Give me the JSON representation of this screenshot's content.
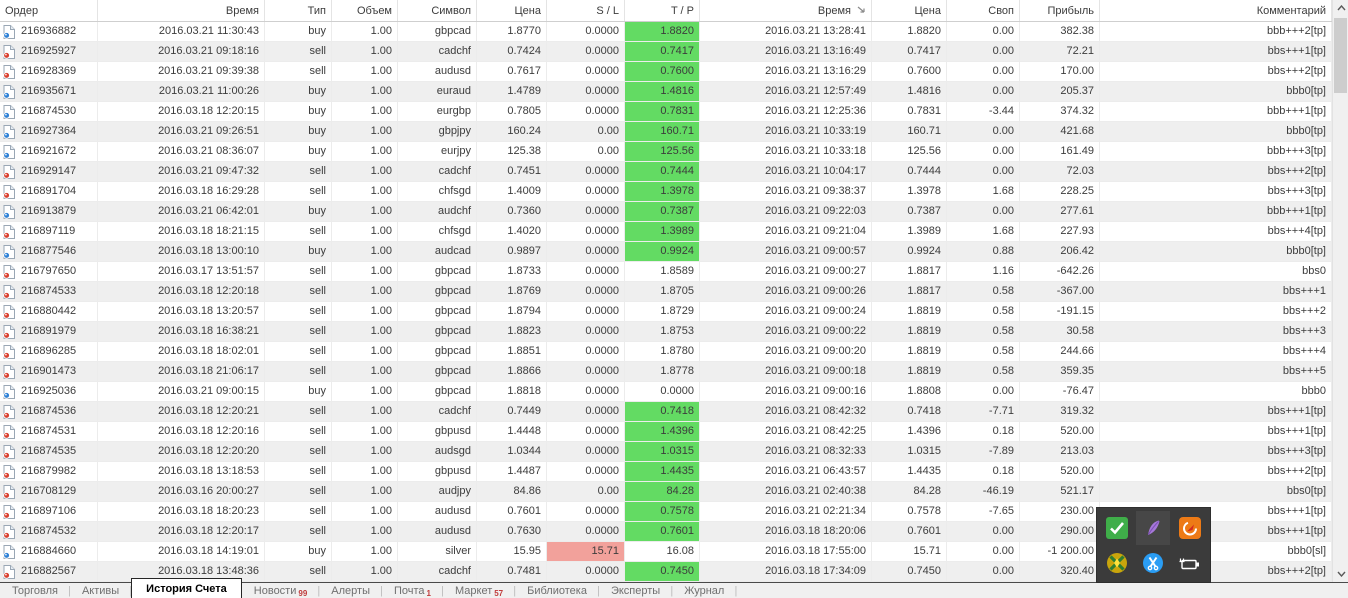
{
  "colors": {
    "tp_green": "#63db63",
    "sl_red": "#f2a19b",
    "badge_red": "#c03b3b",
    "buy_icon": "#2f81d6",
    "sell_icon": "#d8402f"
  },
  "table": {
    "columns": [
      {
        "label": "Ордер"
      },
      {
        "label": "Время"
      },
      {
        "label": "Тип"
      },
      {
        "label": "Объем"
      },
      {
        "label": "Символ"
      },
      {
        "label": "Цена"
      },
      {
        "label": "S / L"
      },
      {
        "label": "T / P"
      },
      {
        "label": "Время",
        "sorted": "desc"
      },
      {
        "label": "Цена"
      },
      {
        "label": "Своп"
      },
      {
        "label": "Прибыль"
      },
      {
        "label": "Комментарий"
      }
    ],
    "rows": [
      {
        "order": "216936882",
        "open_time": "2016.03.21 11:30:43",
        "type": "buy",
        "volume": "1.00",
        "symbol": "gbpcad",
        "open_price": "1.8770",
        "sl": "0.0000",
        "tp": "1.8820",
        "tp_green": true,
        "close_time": "2016.03.21 13:28:41",
        "close_price": "1.8820",
        "swap": "0.00",
        "profit": "382.38",
        "comment": "bbb+++2[tp]"
      },
      {
        "order": "216925927",
        "open_time": "2016.03.21 09:18:16",
        "type": "sell",
        "volume": "1.00",
        "symbol": "cadchf",
        "open_price": "0.7424",
        "sl": "0.0000",
        "tp": "0.7417",
        "tp_green": true,
        "close_time": "2016.03.21 13:16:49",
        "close_price": "0.7417",
        "swap": "0.00",
        "profit": "72.21",
        "comment": "bbs+++1[tp]"
      },
      {
        "order": "216928369",
        "open_time": "2016.03.21 09:39:38",
        "type": "sell",
        "volume": "1.00",
        "symbol": "audusd",
        "open_price": "0.7617",
        "sl": "0.0000",
        "tp": "0.7600",
        "tp_green": true,
        "close_time": "2016.03.21 13:16:29",
        "close_price": "0.7600",
        "swap": "0.00",
        "profit": "170.00",
        "comment": "bbs+++2[tp]"
      },
      {
        "order": "216935671",
        "open_time": "2016.03.21 11:00:26",
        "type": "buy",
        "volume": "1.00",
        "symbol": "euraud",
        "open_price": "1.4789",
        "sl": "0.0000",
        "tp": "1.4816",
        "tp_green": true,
        "close_time": "2016.03.21 12:57:49",
        "close_price": "1.4816",
        "swap": "0.00",
        "profit": "205.37",
        "comment": "bbb0[tp]"
      },
      {
        "order": "216874530",
        "open_time": "2016.03.18 12:20:15",
        "type": "buy",
        "volume": "1.00",
        "symbol": "eurgbp",
        "open_price": "0.7805",
        "sl": "0.0000",
        "tp": "0.7831",
        "tp_green": true,
        "close_time": "2016.03.21 12:25:36",
        "close_price": "0.7831",
        "swap": "-3.44",
        "profit": "374.32",
        "comment": "bbb+++1[tp]"
      },
      {
        "order": "216927364",
        "open_time": "2016.03.21 09:26:51",
        "type": "buy",
        "volume": "1.00",
        "symbol": "gbpjpy",
        "open_price": "160.24",
        "sl": "0.00",
        "tp": "160.71",
        "tp_green": true,
        "close_time": "2016.03.21 10:33:19",
        "close_price": "160.71",
        "swap": "0.00",
        "profit": "421.68",
        "comment": "bbb0[tp]"
      },
      {
        "order": "216921672",
        "open_time": "2016.03.21 08:36:07",
        "type": "buy",
        "volume": "1.00",
        "symbol": "eurjpy",
        "open_price": "125.38",
        "sl": "0.00",
        "tp": "125.56",
        "tp_green": true,
        "close_time": "2016.03.21 10:33:18",
        "close_price": "125.56",
        "swap": "0.00",
        "profit": "161.49",
        "comment": "bbb+++3[tp]"
      },
      {
        "order": "216929147",
        "open_time": "2016.03.21 09:47:32",
        "type": "sell",
        "volume": "1.00",
        "symbol": "cadchf",
        "open_price": "0.7451",
        "sl": "0.0000",
        "tp": "0.7444",
        "tp_green": true,
        "close_time": "2016.03.21 10:04:17",
        "close_price": "0.7444",
        "swap": "0.00",
        "profit": "72.03",
        "comment": "bbs+++2[tp]"
      },
      {
        "order": "216891704",
        "open_time": "2016.03.18 16:29:28",
        "type": "sell",
        "volume": "1.00",
        "symbol": "chfsgd",
        "open_price": "1.4009",
        "sl": "0.0000",
        "tp": "1.3978",
        "tp_green": true,
        "close_time": "2016.03.21 09:38:37",
        "close_price": "1.3978",
        "swap": "1.68",
        "profit": "228.25",
        "comment": "bbs+++3[tp]"
      },
      {
        "order": "216913879",
        "open_time": "2016.03.21 06:42:01",
        "type": "buy",
        "volume": "1.00",
        "symbol": "audchf",
        "open_price": "0.7360",
        "sl": "0.0000",
        "tp": "0.7387",
        "tp_green": true,
        "close_time": "2016.03.21 09:22:03",
        "close_price": "0.7387",
        "swap": "0.00",
        "profit": "277.61",
        "comment": "bbb+++1[tp]"
      },
      {
        "order": "216897119",
        "open_time": "2016.03.18 18:21:15",
        "type": "sell",
        "volume": "1.00",
        "symbol": "chfsgd",
        "open_price": "1.4020",
        "sl": "0.0000",
        "tp": "1.3989",
        "tp_green": true,
        "close_time": "2016.03.21 09:21:04",
        "close_price": "1.3989",
        "swap": "1.68",
        "profit": "227.93",
        "comment": "bbs+++4[tp]"
      },
      {
        "order": "216877546",
        "open_time": "2016.03.18 13:00:10",
        "type": "buy",
        "volume": "1.00",
        "symbol": "audcad",
        "open_price": "0.9897",
        "sl": "0.0000",
        "tp": "0.9924",
        "tp_green": true,
        "close_time": "2016.03.21 09:00:57",
        "close_price": "0.9924",
        "swap": "0.88",
        "profit": "206.42",
        "comment": "bbb0[tp]"
      },
      {
        "order": "216797650",
        "open_time": "2016.03.17 13:51:57",
        "type": "sell",
        "volume": "1.00",
        "symbol": "gbpcad",
        "open_price": "1.8733",
        "sl": "0.0000",
        "tp": "1.8589",
        "tp_green": false,
        "close_time": "2016.03.21 09:00:27",
        "close_price": "1.8817",
        "swap": "1.16",
        "profit": "-642.26",
        "comment": "bbs0"
      },
      {
        "order": "216874533",
        "open_time": "2016.03.18 12:20:18",
        "type": "sell",
        "volume": "1.00",
        "symbol": "gbpcad",
        "open_price": "1.8769",
        "sl": "0.0000",
        "tp": "1.8705",
        "tp_green": false,
        "close_time": "2016.03.21 09:00:26",
        "close_price": "1.8817",
        "swap": "0.58",
        "profit": "-367.00",
        "comment": "bbs+++1"
      },
      {
        "order": "216880442",
        "open_time": "2016.03.18 13:20:57",
        "type": "sell",
        "volume": "1.00",
        "symbol": "gbpcad",
        "open_price": "1.8794",
        "sl": "0.0000",
        "tp": "1.8729",
        "tp_green": false,
        "close_time": "2016.03.21 09:00:24",
        "close_price": "1.8819",
        "swap": "0.58",
        "profit": "-191.15",
        "comment": "bbs+++2"
      },
      {
        "order": "216891979",
        "open_time": "2016.03.18 16:38:21",
        "type": "sell",
        "volume": "1.00",
        "symbol": "gbpcad",
        "open_price": "1.8823",
        "sl": "0.0000",
        "tp": "1.8753",
        "tp_green": false,
        "close_time": "2016.03.21 09:00:22",
        "close_price": "1.8819",
        "swap": "0.58",
        "profit": "30.58",
        "comment": "bbs+++3"
      },
      {
        "order": "216896285",
        "open_time": "2016.03.18 18:02:01",
        "type": "sell",
        "volume": "1.00",
        "symbol": "gbpcad",
        "open_price": "1.8851",
        "sl": "0.0000",
        "tp": "1.8780",
        "tp_green": false,
        "close_time": "2016.03.21 09:00:20",
        "close_price": "1.8819",
        "swap": "0.58",
        "profit": "244.66",
        "comment": "bbs+++4"
      },
      {
        "order": "216901473",
        "open_time": "2016.03.18 21:06:17",
        "type": "sell",
        "volume": "1.00",
        "symbol": "gbpcad",
        "open_price": "1.8866",
        "sl": "0.0000",
        "tp": "1.8778",
        "tp_green": false,
        "close_time": "2016.03.21 09:00:18",
        "close_price": "1.8819",
        "swap": "0.58",
        "profit": "359.35",
        "comment": "bbs+++5"
      },
      {
        "order": "216925036",
        "open_time": "2016.03.21 09:00:15",
        "type": "buy",
        "volume": "1.00",
        "symbol": "gbpcad",
        "open_price": "1.8818",
        "sl": "0.0000",
        "tp": "0.0000",
        "tp_green": false,
        "close_time": "2016.03.21 09:00:16",
        "close_price": "1.8808",
        "swap": "0.00",
        "profit": "-76.47",
        "comment": "bbb0"
      },
      {
        "order": "216874536",
        "open_time": "2016.03.18 12:20:21",
        "type": "sell",
        "volume": "1.00",
        "symbol": "cadchf",
        "open_price": "0.7449",
        "sl": "0.0000",
        "tp": "0.7418",
        "tp_green": true,
        "close_time": "2016.03.21 08:42:32",
        "close_price": "0.7418",
        "swap": "-7.71",
        "profit": "319.32",
        "comment": "bbs+++1[tp]"
      },
      {
        "order": "216874531",
        "open_time": "2016.03.18 12:20:16",
        "type": "sell",
        "volume": "1.00",
        "symbol": "gbpusd",
        "open_price": "1.4448",
        "sl": "0.0000",
        "tp": "1.4396",
        "tp_green": true,
        "close_time": "2016.03.21 08:42:25",
        "close_price": "1.4396",
        "swap": "0.18",
        "profit": "520.00",
        "comment": "bbs+++1[tp]"
      },
      {
        "order": "216874535",
        "open_time": "2016.03.18 12:20:20",
        "type": "sell",
        "volume": "1.00",
        "symbol": "audsgd",
        "open_price": "1.0344",
        "sl": "0.0000",
        "tp": "1.0315",
        "tp_green": true,
        "close_time": "2016.03.21 08:32:33",
        "close_price": "1.0315",
        "swap": "-7.89",
        "profit": "213.03",
        "comment": "bbs+++3[tp]"
      },
      {
        "order": "216879982",
        "open_time": "2016.03.18 13:18:53",
        "type": "sell",
        "volume": "1.00",
        "symbol": "gbpusd",
        "open_price": "1.4487",
        "sl": "0.0000",
        "tp": "1.4435",
        "tp_green": true,
        "close_time": "2016.03.21 06:43:57",
        "close_price": "1.4435",
        "swap": "0.18",
        "profit": "520.00",
        "comment": "bbs+++2[tp]"
      },
      {
        "order": "216708129",
        "open_time": "2016.03.16 20:00:27",
        "type": "sell",
        "volume": "1.00",
        "symbol": "audjpy",
        "open_price": "84.86",
        "sl": "0.00",
        "tp": "84.28",
        "tp_green": true,
        "close_time": "2016.03.21 02:40:38",
        "close_price": "84.28",
        "swap": "-46.19",
        "profit": "521.17",
        "comment": "bbs0[tp]"
      },
      {
        "order": "216897106",
        "open_time": "2016.03.18 18:20:23",
        "type": "sell",
        "volume": "1.00",
        "symbol": "audusd",
        "open_price": "0.7601",
        "sl": "0.0000",
        "tp": "0.7578",
        "tp_green": true,
        "close_time": "2016.03.21 02:21:34",
        "close_price": "0.7578",
        "swap": "-7.65",
        "profit": "230.00",
        "comment": "bbs+++1[tp]"
      },
      {
        "order": "216874532",
        "open_time": "2016.03.18 12:20:17",
        "type": "sell",
        "volume": "1.00",
        "symbol": "audusd",
        "open_price": "0.7630",
        "sl": "0.0000",
        "tp": "0.7601",
        "tp_green": true,
        "close_time": "2016.03.18 18:20:06",
        "close_price": "0.7601",
        "swap": "0.00",
        "profit": "290.00",
        "comment": "bbs+++1[tp]"
      },
      {
        "order": "216884660",
        "open_time": "2016.03.18 14:19:01",
        "type": "buy",
        "volume": "1.00",
        "symbol": "silver",
        "open_price": "15.95",
        "sl": "15.71",
        "sl_red": true,
        "tp": "16.08",
        "tp_green": false,
        "close_time": "2016.03.18 17:55:00",
        "close_price": "15.71",
        "swap": "0.00",
        "profit": "-1 200.00",
        "comment": "bbb0[sl]"
      },
      {
        "order": "216882567",
        "open_time": "2016.03.18 13:48:36",
        "type": "sell",
        "volume": "1.00",
        "symbol": "cadchf",
        "open_price": "0.7481",
        "sl": "0.0000",
        "tp": "0.7450",
        "tp_green": true,
        "close_time": "2016.03.18 17:34:09",
        "close_price": "0.7450",
        "swap": "0.00",
        "profit": "320.40",
        "comment": "bbs+++2[tp]"
      }
    ]
  },
  "tabs": {
    "items": [
      {
        "label": "Торговля"
      },
      {
        "label": "Активы"
      },
      {
        "label": "История Счета",
        "active": true
      },
      {
        "label": "Новости",
        "badge": "99"
      },
      {
        "label": "Алерты"
      },
      {
        "label": "Почта",
        "badge": "1"
      },
      {
        "label": "Маркет",
        "badge": "57"
      },
      {
        "label": "Библиотека"
      },
      {
        "label": "Эксперты"
      },
      {
        "label": "Журнал"
      }
    ]
  },
  "tray": {
    "icons": [
      {
        "name": "check-icon"
      },
      {
        "name": "feather-icon",
        "hover": true
      },
      {
        "name": "gauge-icon"
      },
      {
        "name": "pinwheel-icon"
      },
      {
        "name": "tools-icon"
      },
      {
        "name": "battery-icon"
      }
    ]
  }
}
